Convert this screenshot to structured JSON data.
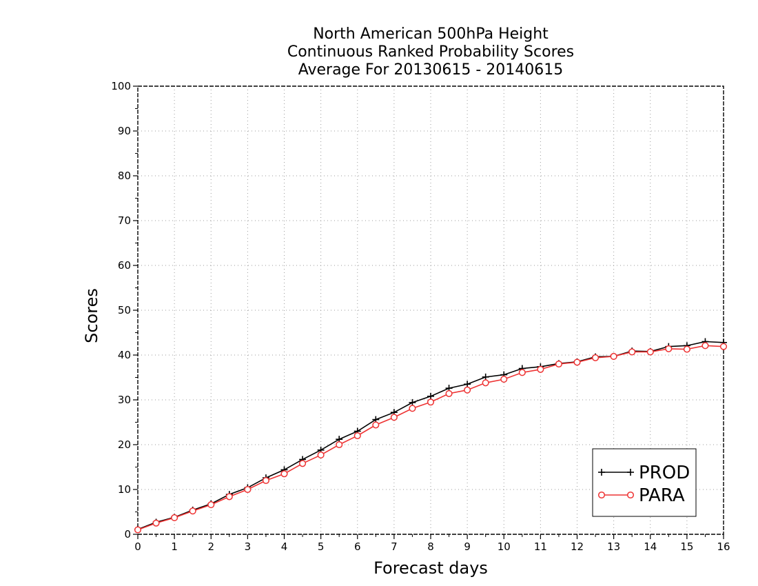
{
  "chart_data": {
    "type": "line",
    "title": [
      "North American 500hPa Height",
      "Continuous Ranked Probability Scores",
      "Average For 20130615 - 20140615"
    ],
    "xlabel": "Forecast days",
    "ylabel": "Scores",
    "xlim": [
      0,
      16
    ],
    "ylim": [
      0,
      100
    ],
    "x_ticks": [
      0,
      1,
      2,
      3,
      4,
      5,
      6,
      7,
      8,
      9,
      10,
      11,
      12,
      13,
      14,
      15,
      16
    ],
    "y_ticks": [
      0,
      10,
      20,
      30,
      40,
      50,
      60,
      70,
      80,
      90,
      100
    ],
    "grid": true,
    "legend_position": "bottom-right",
    "x": [
      0,
      0.5,
      1,
      1.5,
      2,
      2.5,
      3,
      3.5,
      4,
      4.5,
      5,
      5.5,
      6,
      6.5,
      7,
      7.5,
      8,
      8.5,
      9,
      9.5,
      10,
      10.5,
      11,
      11.5,
      12,
      12.5,
      13,
      13.5,
      14,
      14.5,
      15,
      15.5,
      16
    ],
    "series": [
      {
        "name": "PROD",
        "color": "#000000",
        "marker": "plus",
        "values": [
          1.1,
          2.7,
          3.8,
          5.4,
          6.8,
          8.9,
          10.4,
          12.6,
          14.4,
          16.7,
          18.8,
          21.2,
          23.0,
          25.6,
          27.2,
          29.4,
          30.8,
          32.6,
          33.5,
          35.1,
          35.6,
          37.0,
          37.4,
          38.1,
          38.5,
          39.6,
          39.7,
          40.9,
          40.8,
          41.9,
          42.1,
          43.0,
          42.8
        ]
      },
      {
        "name": "PARA",
        "color": "#ee3333",
        "marker": "circle",
        "values": [
          1.0,
          2.5,
          3.7,
          5.2,
          6.6,
          8.4,
          10.0,
          12.0,
          13.5,
          15.8,
          17.7,
          20.0,
          22.0,
          24.4,
          26.1,
          28.1,
          29.5,
          31.4,
          32.2,
          33.8,
          34.6,
          36.1,
          36.8,
          38.0,
          38.4,
          39.4,
          39.7,
          40.7,
          40.7,
          41.4,
          41.3,
          42.1,
          41.9
        ]
      }
    ]
  }
}
